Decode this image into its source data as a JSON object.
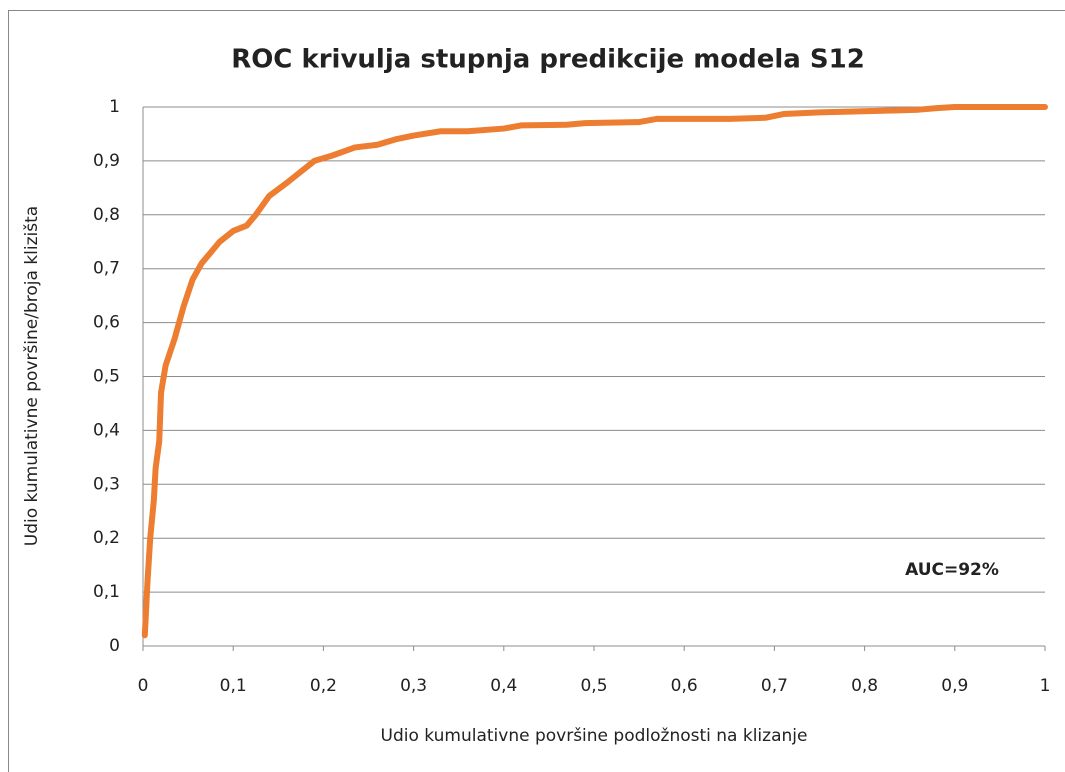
{
  "chart_data": {
    "type": "line",
    "title": "ROC krivulja stupnja predikcije modela S12",
    "x_label": "Udio kumulativne površine podložnosti na klizanje",
    "y_label": "Udio kumulativne površine/broja klizišta",
    "annotation": "AUC=92%",
    "x": [
      0.002,
      0.005,
      0.008,
      0.012,
      0.014,
      0.018,
      0.02,
      0.025,
      0.035,
      0.045,
      0.055,
      0.065,
      0.075,
      0.085,
      0.1,
      0.115,
      0.125,
      0.14,
      0.16,
      0.175,
      0.19,
      0.21,
      0.235,
      0.26,
      0.28,
      0.3,
      0.33,
      0.36,
      0.4,
      0.42,
      0.47,
      0.49,
      0.55,
      0.57,
      0.65,
      0.69,
      0.71,
      0.75,
      0.82,
      0.86,
      0.88,
      0.9,
      1.0
    ],
    "series": [
      {
        "color": "#ed7d31",
        "values": [
          0.02,
          0.12,
          0.2,
          0.27,
          0.33,
          0.38,
          0.47,
          0.52,
          0.57,
          0.63,
          0.68,
          0.71,
          0.73,
          0.75,
          0.77,
          0.78,
          0.8,
          0.835,
          0.86,
          0.88,
          0.9,
          0.91,
          0.925,
          0.93,
          0.94,
          0.947,
          0.955,
          0.955,
          0.96,
          0.966,
          0.967,
          0.97,
          0.972,
          0.978,
          0.978,
          0.98,
          0.987,
          0.99,
          0.993,
          0.995,
          0.998,
          1.0,
          1.0
        ]
      }
    ],
    "xlim": [
      0,
      1
    ],
    "ylim": [
      0,
      1
    ],
    "xticks": [
      0,
      {
        "value": 0.1,
        "label": "0,1"
      },
      {
        "value": 0.2,
        "label": "0,2"
      },
      {
        "value": 0.3,
        "label": "0,3"
      },
      {
        "value": 0.4,
        "label": "0,4"
      },
      {
        "value": 0.5,
        "label": "0,5"
      },
      {
        "value": 0.6,
        "label": "0,6"
      },
      {
        "value": 0.7,
        "label": "0,7"
      },
      {
        "value": 0.8,
        "label": "0,8"
      },
      {
        "value": 0.9,
        "label": "0,9"
      },
      1
    ],
    "yticks": [
      0,
      {
        "value": 0.1,
        "label": "0,1"
      },
      {
        "value": 0.2,
        "label": "0,2"
      },
      {
        "value": 0.3,
        "label": "0,3"
      },
      {
        "value": 0.4,
        "label": "0,4"
      },
      {
        "value": 0.5,
        "label": "0,5"
      },
      {
        "value": 0.6,
        "label": "0,6"
      },
      {
        "value": 0.7,
        "label": "0,7"
      },
      {
        "value": 0.8,
        "label": "0,8"
      },
      {
        "value": 0.9,
        "label": "0,9"
      },
      1
    ],
    "grid": true
  }
}
